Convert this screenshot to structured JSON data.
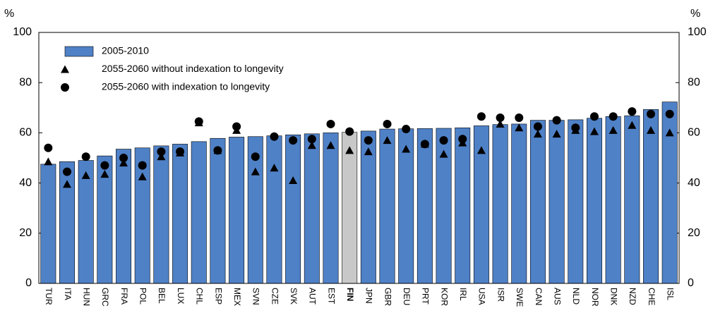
{
  "chart_data": {
    "type": "bar",
    "categories": [
      "TUR",
      "ITA",
      "HUN",
      "GRC",
      "FRA",
      "POL",
      "BEL",
      "LUX",
      "CHL",
      "ESP",
      "MEX",
      "SVN",
      "CZE",
      "SVK",
      "AUT",
      "EST",
      "FIN",
      "JPN",
      "GBR",
      "DEU",
      "PRT",
      "KOR",
      "IRL",
      "USA",
      "ISR",
      "SWE",
      "CAN",
      "AUS",
      "NLD",
      "NOR",
      "DNK",
      "NZD",
      "CHE",
      "ISL"
    ],
    "series": [
      {
        "name": "2005-2010",
        "marker": "bar",
        "color": "#4f81c7",
        "colors": [
          "#4f81c7",
          "#4f81c7",
          "#4f81c7",
          "#4f81c7",
          "#4f81c7",
          "#4f81c7",
          "#4f81c7",
          "#4f81c7",
          "#4f81c7",
          "#4f81c7",
          "#4f81c7",
          "#4f81c7",
          "#4f81c7",
          "#4f81c7",
          "#4f81c7",
          "#4f81c7",
          "#c8c8c8",
          "#4f81c7",
          "#4f81c7",
          "#4f81c7",
          "#4f81c7",
          "#4f81c7",
          "#4f81c7",
          "#4f81c7",
          "#4f81c7",
          "#4f81c7",
          "#4f81c7",
          "#4f81c7",
          "#4f81c7",
          "#4f81c7",
          "#4f81c7",
          "#4f81c7",
          "#4f81c7",
          "#4f81c7"
        ],
        "values": [
          47.5,
          48.5,
          49,
          50.8,
          53.5,
          54,
          54.8,
          55.5,
          56.5,
          57.8,
          58.3,
          58.5,
          58.8,
          59.2,
          59.6,
          60,
          60.2,
          60.7,
          61.5,
          61.6,
          61.7,
          61.8,
          62,
          62.8,
          63.3,
          63.5,
          65,
          65,
          65.2,
          65.8,
          66.5,
          66.8,
          69.3,
          72.3
        ]
      },
      {
        "name": "2055-2060 without indexation to longevity",
        "marker": "triangle",
        "color": "#000000",
        "values": [
          48.5,
          39.5,
          43,
          43.5,
          48,
          42.5,
          50.5,
          52,
          64,
          53,
          61,
          44.5,
          46,
          41,
          55,
          55,
          53,
          52.5,
          57,
          53.5,
          55.5,
          51.5,
          56,
          53,
          63.5,
          62,
          59.5,
          59.5,
          61,
          60.5,
          61,
          63,
          61,
          60
        ]
      },
      {
        "name": "2055-2060 with indexation to longevity",
        "marker": "circle",
        "color": "#000000",
        "values": [
          54,
          44.5,
          50.5,
          47,
          50,
          47,
          52.5,
          52.5,
          64.5,
          53,
          62.5,
          50.5,
          58.5,
          57,
          57.5,
          63.5,
          60.5,
          57,
          63.5,
          61.5,
          55.5,
          57,
          57.5,
          66.5,
          66,
          66,
          62.5,
          65,
          62,
          66.5,
          66.5,
          68.5,
          67.5,
          67.5
        ]
      }
    ],
    "bold_category": "FIN",
    "y_label": "%",
    "y2_label": "%",
    "ylim": [
      0,
      100
    ],
    "yticks": [
      0,
      20,
      40,
      60,
      80,
      100
    ],
    "y2lim": [
      0,
      100
    ],
    "y2ticks": [
      0,
      20,
      40,
      60,
      80,
      100
    ],
    "legend": "top-left"
  }
}
